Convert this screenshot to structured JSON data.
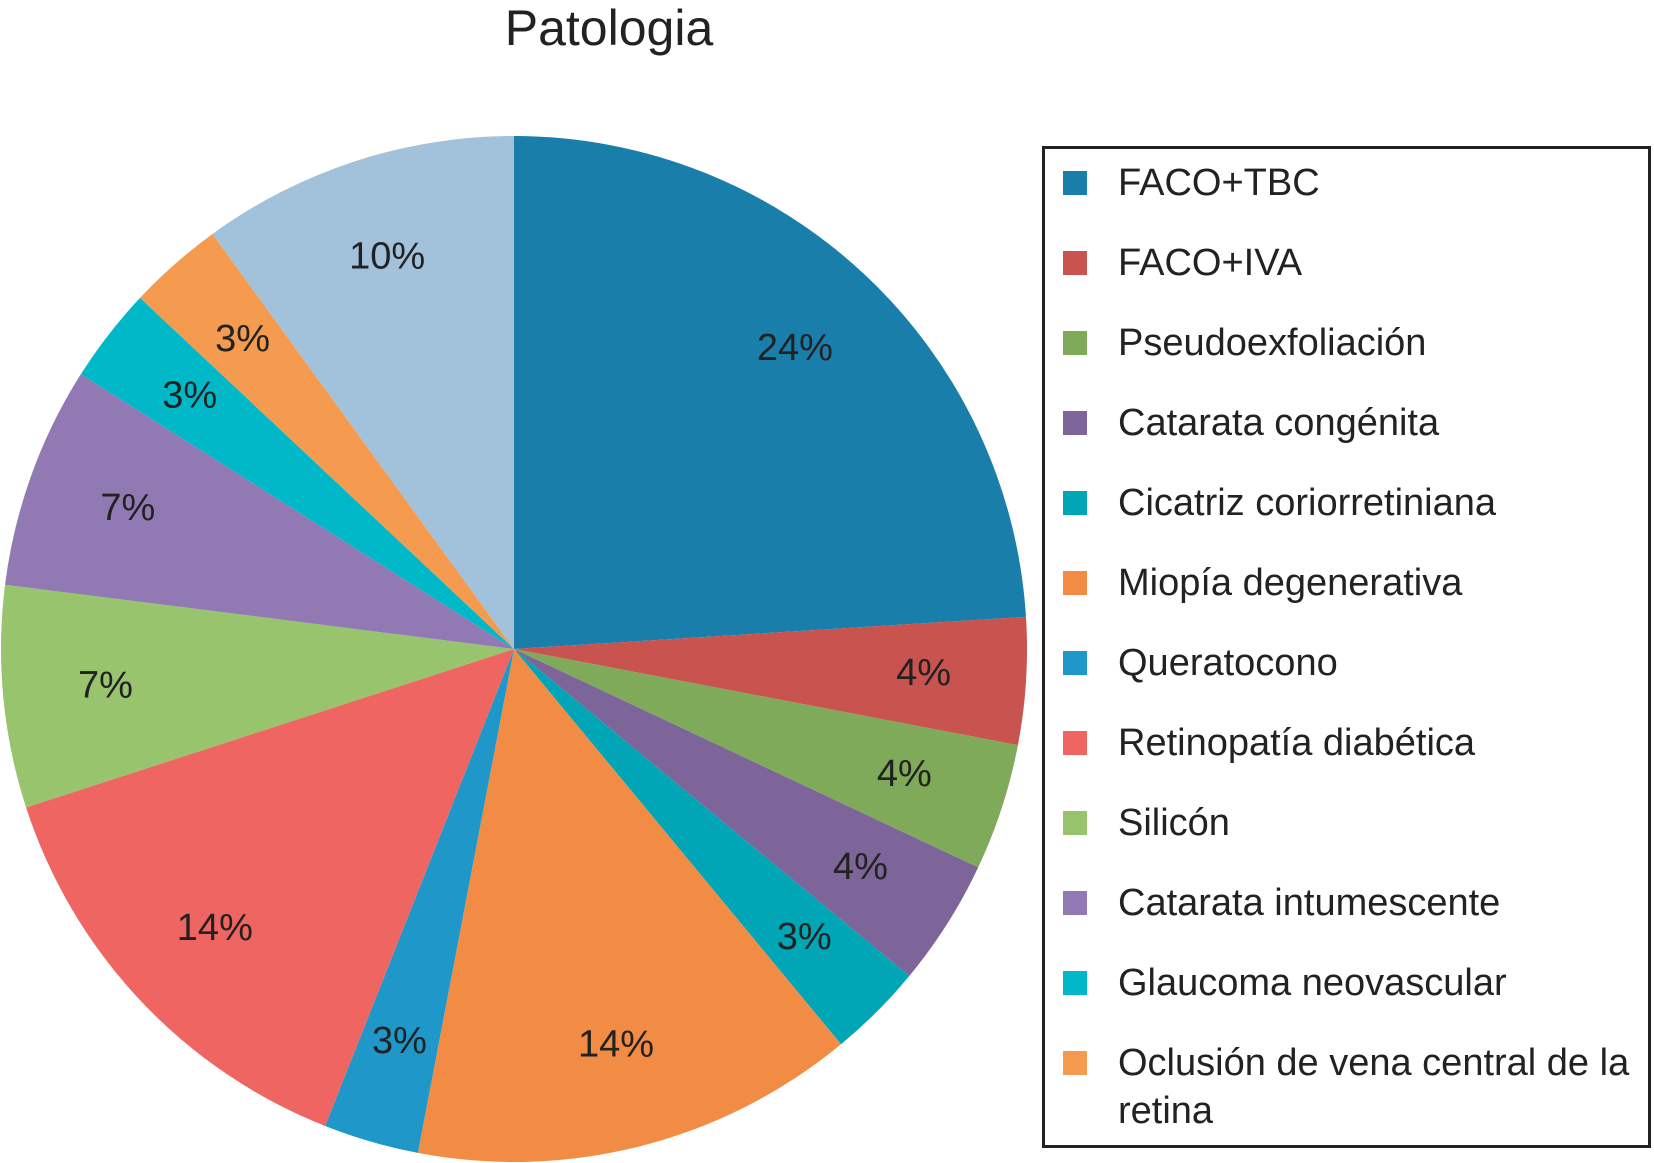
{
  "chart_data": {
    "type": "pie",
    "title": "Patologia",
    "categories": [
      "FACO+TBC",
      "FACO+IVA",
      "Pseudoexfoliación",
      "Catarata congénita",
      "Cicatriz coriorretiniana",
      "Miopía degenerativa",
      "Queratocono",
      "Retinopatía diabética",
      "Silicón",
      "Catarata intumescente",
      "Glaucoma neovascular",
      "Oclusión de vena central de la retina",
      null
    ],
    "values": [
      24,
      4,
      4,
      4,
      3,
      14,
      3,
      14,
      7,
      7,
      3,
      3,
      10
    ],
    "value_labels": [
      "24%",
      "4%",
      "4%",
      "4%",
      "3%",
      "14%",
      "3%",
      "14%",
      "7%",
      "7%",
      "3%",
      "3%",
      "10%"
    ],
    "colors": [
      "#1a7eab",
      "#c9534f",
      "#7faa5a",
      "#7d6599",
      "#00a6b5",
      "#f28c45",
      "#1f97c9",
      "#ef6561",
      "#99c46e",
      "#9179b4",
      "#00b8c8",
      "#f59b4f",
      "#a2c2dc"
    ],
    "legend": "right"
  }
}
